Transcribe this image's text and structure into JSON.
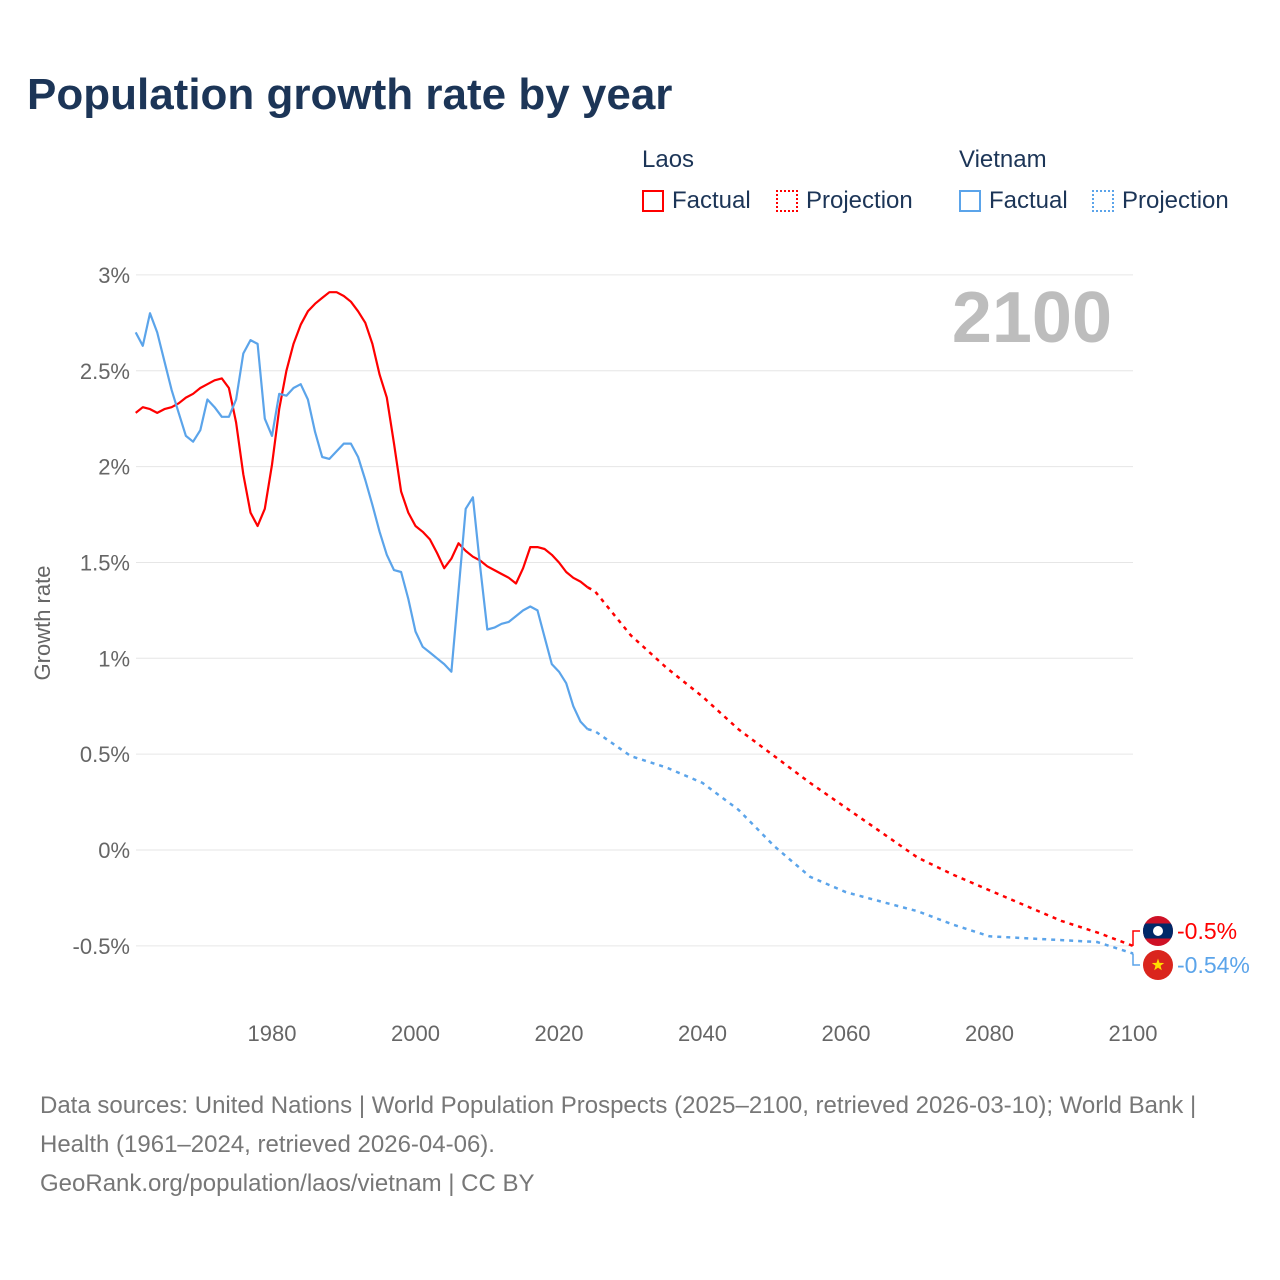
{
  "title": "Population growth rate by year",
  "legend": {
    "groups": [
      {
        "name": "Laos",
        "color": "#ff0000",
        "factual": "Factual",
        "projection": "Projection"
      },
      {
        "name": "Vietnam",
        "color": "#5ba4ea",
        "factual": "Factual",
        "projection": "Projection"
      }
    ]
  },
  "year_display": "2100",
  "footer": {
    "sources": "Data sources: United Nations | World Population Prospects (2025–2100, retrieved 2026-03-10); World Bank | Health (1961–2024, retrieved 2026-04-06).",
    "credit": "GeoRank.org/population/laos/vietnam | CC BY"
  },
  "chart_data": {
    "type": "line",
    "title": "Population growth rate by year",
    "xlabel": "",
    "ylabel": "Growth rate",
    "xlim": [
      1961,
      2100
    ],
    "ylim": [
      -0.6,
      3.1
    ],
    "xticks": [
      1980,
      2000,
      2020,
      2040,
      2060,
      2080,
      2100
    ],
    "xtick_labels": [
      "1980",
      "2000",
      "2020",
      "2040",
      "2060",
      "2080",
      "2100"
    ],
    "yticks": [
      3,
      2.5,
      2,
      1.5,
      1,
      0.5,
      0,
      -0.5
    ],
    "ytick_labels": [
      "3%",
      "2.5%",
      "2%",
      "1.5%",
      "1%",
      "0.5%",
      "0%",
      "-0.5%"
    ],
    "grid": true,
    "legend_position": "top-right",
    "series": [
      {
        "name": "Laos",
        "kind": "factual",
        "color": "#ff0000",
        "x_start": 1961,
        "values": [
          2.28,
          2.31,
          2.3,
          2.28,
          2.3,
          2.31,
          2.33,
          2.36,
          2.38,
          2.41,
          2.43,
          2.45,
          2.46,
          2.41,
          2.23,
          1.96,
          1.76,
          1.69,
          1.78,
          2.01,
          2.3,
          2.5,
          2.64,
          2.74,
          2.81,
          2.85,
          2.88,
          2.91,
          2.91,
          2.89,
          2.86,
          2.81,
          2.75,
          2.64,
          2.48,
          2.36,
          2.12,
          1.87,
          1.76,
          1.69,
          1.66,
          1.62,
          1.55,
          1.47,
          1.52,
          1.6,
          1.56,
          1.53,
          1.51,
          1.48,
          1.46,
          1.44,
          1.42,
          1.39,
          1.47,
          1.58,
          1.58,
          1.57,
          1.54,
          1.5,
          1.45,
          1.42,
          1.4,
          1.37
        ]
      },
      {
        "name": "Laos",
        "kind": "projection",
        "color": "#ff0000",
        "x": [
          2024,
          2025,
          2030,
          2035,
          2040,
          2045,
          2050,
          2055,
          2060,
          2065,
          2070,
          2075,
          2080,
          2085,
          2090,
          2095,
          2100
        ],
        "values": [
          1.37,
          1.35,
          1.12,
          0.95,
          0.8,
          0.63,
          0.49,
          0.35,
          0.22,
          0.09,
          -0.04,
          -0.13,
          -0.21,
          -0.29,
          -0.37,
          -0.43,
          -0.5
        ]
      },
      {
        "name": "Vietnam",
        "kind": "factual",
        "color": "#5ba4ea",
        "x_start": 1961,
        "values": [
          2.7,
          2.63,
          2.8,
          2.7,
          2.55,
          2.4,
          2.28,
          2.16,
          2.13,
          2.19,
          2.35,
          2.31,
          2.26,
          2.26,
          2.35,
          2.59,
          2.66,
          2.64,
          2.25,
          2.16,
          2.38,
          2.37,
          2.41,
          2.43,
          2.35,
          2.18,
          2.05,
          2.04,
          2.08,
          2.12,
          2.12,
          2.05,
          1.93,
          1.8,
          1.66,
          1.54,
          1.46,
          1.45,
          1.31,
          1.14,
          1.06,
          1.03,
          1.0,
          0.97,
          0.93,
          1.35,
          1.78,
          1.84,
          1.48,
          1.15,
          1.16,
          1.18,
          1.19,
          1.22,
          1.25,
          1.27,
          1.25,
          1.11,
          0.97,
          0.93,
          0.87,
          0.75,
          0.67,
          0.63
        ]
      },
      {
        "name": "Vietnam",
        "kind": "projection",
        "color": "#5ba4ea",
        "x": [
          2024,
          2025,
          2030,
          2035,
          2040,
          2045,
          2050,
          2055,
          2060,
          2065,
          2070,
          2075,
          2080,
          2085,
          2090,
          2095,
          2100
        ],
        "values": [
          0.63,
          0.62,
          0.49,
          0.43,
          0.35,
          0.21,
          0.02,
          -0.14,
          -0.22,
          -0.27,
          -0.32,
          -0.39,
          -0.45,
          -0.46,
          -0.47,
          -0.48,
          -0.54
        ]
      }
    ],
    "end_labels": [
      {
        "country": "Laos",
        "text": "-0.5%",
        "color": "#ff0000"
      },
      {
        "country": "Vietnam",
        "text": "-0.54%",
        "color": "#5ba4ea"
      }
    ]
  }
}
